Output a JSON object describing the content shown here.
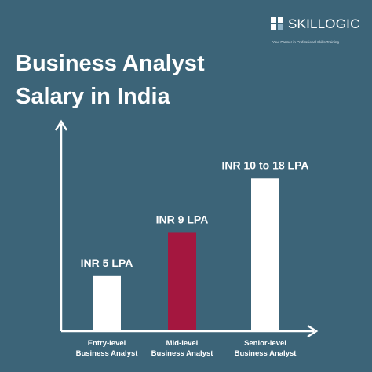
{
  "brand": {
    "name": "SKILLOGIC",
    "tagline": "Your Partner in Professional Skills Training"
  },
  "title_lines": [
    "Business Analyst",
    "Salary in India"
  ],
  "colors": {
    "background": "#3c6478",
    "bar_default": "#ffffff",
    "bar_highlight": "#a4173f",
    "axis": "#ffffff",
    "text": "#ffffff"
  },
  "chart_data": {
    "type": "bar",
    "title": "Business Analyst Salary in India",
    "categories": [
      [
        "Entry-level",
        "Business Analyst"
      ],
      [
        "Mid-level",
        "Business Analyst"
      ],
      [
        "Senior-level",
        "Business Analyst"
      ]
    ],
    "values": [
      5,
      9,
      14
    ],
    "data_labels": [
      "INR 5 LPA",
      "INR 9 LPA",
      "INR 10 to 18 LPA"
    ],
    "highlight_index": 1,
    "ylim": [
      0,
      18.5
    ],
    "unit": "LPA",
    "grid": false,
    "legend": "none"
  }
}
